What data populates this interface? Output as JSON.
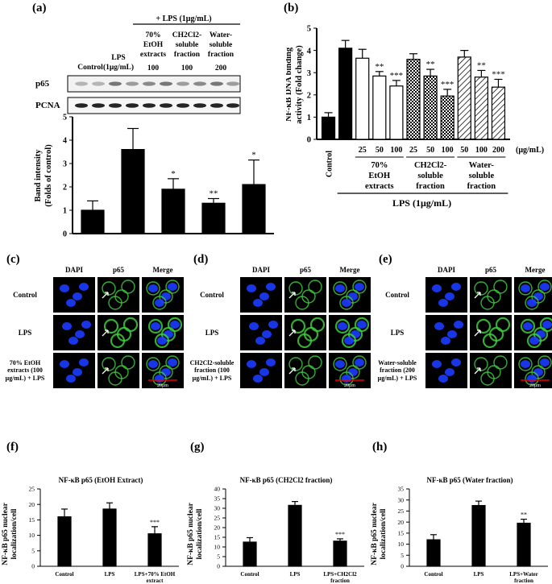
{
  "panel_labels": {
    "a": "(a)",
    "b": "(b)",
    "c": "(c)",
    "d": "(d)",
    "e": "(e)",
    "f": "(f)",
    "g": "(g)",
    "h": "(h)"
  },
  "blot": {
    "lps_header": "+ LPS (1μg/mL)",
    "lanes": [
      {
        "line1": "Control",
        "line2": "",
        "dose": ""
      },
      {
        "line1": "LPS",
        "line2": "(1μg/mL)",
        "dose": ""
      },
      {
        "line1": "70%",
        "line2": "EtOH",
        "line3": "extracts",
        "dose": "100"
      },
      {
        "line1": "CH2Cl2-",
        "line2": "soluble",
        "line3": "fraction",
        "dose": "100"
      },
      {
        "line1": "Water-",
        "line2": "soluble",
        "line3": "fraction",
        "dose": "200"
      }
    ],
    "rows": [
      "p65",
      "PCNA"
    ]
  },
  "chart_data": [
    {
      "id": "a",
      "type": "bar",
      "ylabel": "Band intensity (Folds of control)",
      "ylim": [
        0,
        5
      ],
      "yticks": [
        "0",
        "1",
        "2",
        "3",
        "4",
        "5"
      ],
      "categories": [
        "Control",
        "LPS",
        "70% EtOH",
        "CH2Cl2",
        "Water"
      ],
      "values": [
        1.0,
        3.6,
        1.9,
        1.3,
        2.1
      ],
      "errors": [
        0.4,
        0.9,
        0.45,
        0.2,
        1.05
      ],
      "sig": [
        "",
        "",
        "*",
        "**",
        "*"
      ]
    },
    {
      "id": "b",
      "type": "bar",
      "ylabel": "NF-κB DNA binding activity (Fold change)",
      "ylim": [
        0,
        5
      ],
      "yticks": [
        "0",
        "1",
        "2",
        "3",
        "4",
        "5"
      ],
      "categories": [
        "Control",
        "LPS",
        "25",
        "50",
        "100",
        "25",
        "50",
        "100",
        "50",
        "100",
        "200"
      ],
      "values": [
        1.0,
        4.1,
        3.65,
        2.85,
        2.4,
        3.6,
        2.85,
        1.95,
        3.7,
        2.8,
        2.35
      ],
      "errors": [
        0.2,
        0.35,
        0.4,
        0.2,
        0.25,
        0.25,
        0.3,
        0.3,
        0.3,
        0.3,
        0.35
      ],
      "sig": [
        "",
        "",
        "",
        "**",
        "***",
        "",
        "**",
        "***",
        "",
        "**",
        "***"
      ],
      "styles": [
        "black",
        "black",
        "white",
        "white",
        "white",
        "check",
        "check",
        "check",
        "hatch",
        "hatch",
        "hatch"
      ],
      "unit": "(μg/mL)",
      "xlabel_control": "Control",
      "groups": [
        {
          "line1": "70%",
          "line2": "EtOH",
          "line3": "extracts"
        },
        {
          "line1": "CH2Cl2-",
          "line2": "soluble",
          "line3": "fraction"
        },
        {
          "line1": "Water-",
          "line2": "soluble",
          "line3": "fraction"
        }
      ],
      "lps_label": "LPS (1μg/mL)"
    },
    {
      "id": "f",
      "type": "bar",
      "title": "NF-κB p65 (EtOH Extract)",
      "ylabel": "NF-κB p65 nuclear localization/cell",
      "ylim": [
        0,
        25
      ],
      "yticks": [
        "0",
        "5",
        "10",
        "15",
        "20",
        "25"
      ],
      "categories": [
        "Control",
        "LPS",
        "LPS+70% EtOH extract"
      ],
      "values": [
        16,
        18.5,
        10.5
      ],
      "errors": [
        2.5,
        2,
        2.3
      ],
      "sig": [
        "",
        "",
        "***"
      ]
    },
    {
      "id": "g",
      "type": "bar",
      "title": "NF-κB p65 (CH2Cl2 fraction)",
      "ylabel": "NF-κB p65 nuclear localization/cell",
      "ylim": [
        0,
        40
      ],
      "yticks": [
        "0",
        "5",
        "10",
        "15",
        "20",
        "25",
        "30",
        "35",
        "40"
      ],
      "categories": [
        "Control",
        "LPS",
        "LPS+CH2Cl2 fraction"
      ],
      "values": [
        12.5,
        31.5,
        13
      ],
      "errors": [
        2.3,
        2,
        1.2
      ],
      "sig": [
        "",
        "",
        "***"
      ]
    },
    {
      "id": "h",
      "type": "bar",
      "title": "NF-κB p65 (Water fraction)",
      "ylabel": "NF-κB p65 nuclear localization/cell",
      "ylim": [
        0,
        35
      ],
      "yticks": [
        "0",
        "5",
        "10",
        "15",
        "20",
        "25",
        "30",
        "35"
      ],
      "categories": [
        "Control",
        "LPS",
        "LPS+Water fraction"
      ],
      "values": [
        12,
        27.5,
        19.5
      ],
      "errors": [
        2.3,
        2,
        1.8
      ],
      "sig": [
        "",
        "",
        "**"
      ]
    }
  ],
  "micro": {
    "cols": [
      "DAPI",
      "p65",
      "Merge"
    ],
    "scale": "20μm",
    "c_rows": [
      "Control",
      "LPS",
      "70% EtOH extracts (100 μg/mL) + LPS"
    ],
    "d_rows": [
      "Control",
      "LPS",
      "CH2Cl2-soluble fraction (100 μg/mL) + LPS"
    ],
    "e_rows": [
      "Control",
      "LPS",
      "Water-soluble fraction (200 μg/mL) + LPS"
    ]
  }
}
